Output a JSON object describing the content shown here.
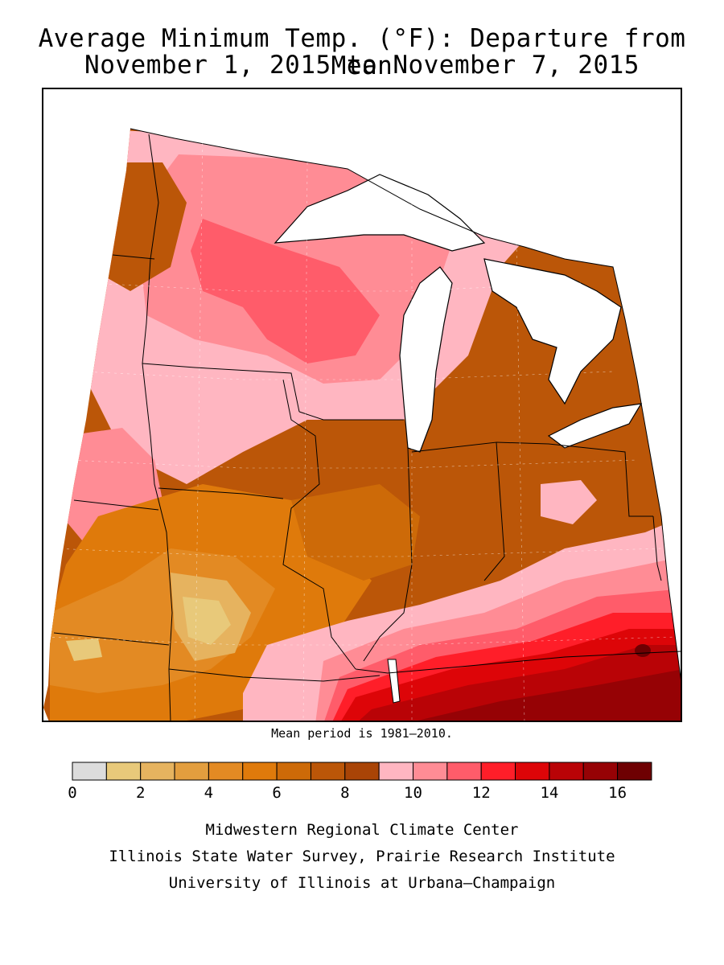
{
  "title": {
    "line1": "Average Minimum Temp. (°F): Departure from Mean",
    "line2": "November 1, 2015 to November 7, 2015"
  },
  "note": "Mean period is 1981–2010.",
  "legend": {
    "tick_labels": [
      "0",
      "2",
      "4",
      "6",
      "8",
      "10",
      "12",
      "14",
      "16"
    ],
    "bins": [
      {
        "from": 0,
        "to": 1,
        "color": "#dcdcdc"
      },
      {
        "from": 1,
        "to": 2,
        "color": "#e8c97a"
      },
      {
        "from": 2,
        "to": 3,
        "color": "#e6b35f"
      },
      {
        "from": 3,
        "to": 4,
        "color": "#e39e3e"
      },
      {
        "from": 4,
        "to": 5,
        "color": "#e38a23"
      },
      {
        "from": 5,
        "to": 6,
        "color": "#df7a0b"
      },
      {
        "from": 6,
        "to": 7,
        "color": "#cd6a08"
      },
      {
        "from": 7,
        "to": 8,
        "color": "#bb5608"
      },
      {
        "from": 8,
        "to": 9,
        "color": "#a94406"
      },
      {
        "from": 9,
        "to": 10,
        "color": "#ffb6c1"
      },
      {
        "from": 10,
        "to": 11,
        "color": "#ff8c95"
      },
      {
        "from": 11,
        "to": 12,
        "color": "#ff5c6a"
      },
      {
        "from": 12,
        "to": 13,
        "color": "#ff1e29"
      },
      {
        "from": 13,
        "to": 14,
        "color": "#dd0508"
      },
      {
        "from": 14,
        "to": 15,
        "color": "#b90306"
      },
      {
        "from": 15,
        "to": 16,
        "color": "#960205"
      },
      {
        "from": 16,
        "to": 17,
        "color": "#6e0002"
      }
    ]
  },
  "credits": [
    "Midwestern Regional Climate Center",
    "Illinois State Water Survey, Prairie Research Institute",
    "University of Illinois at Urbana–Champaign"
  ]
}
